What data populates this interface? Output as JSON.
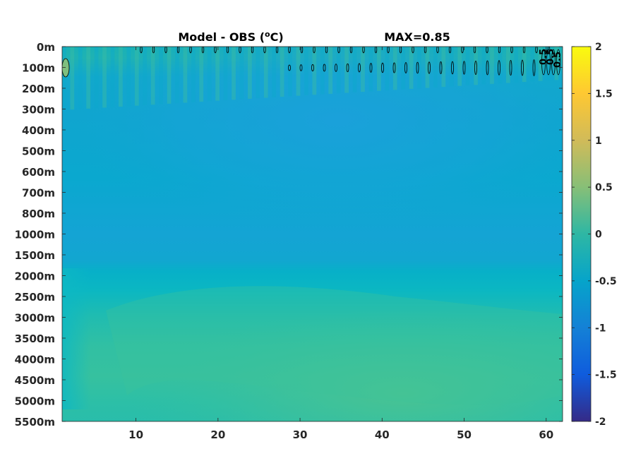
{
  "chart_data": {
    "type": "heatmap",
    "title": "Model - OBS (",
    "title_superscript": "o",
    "title_unit": "C)",
    "annotation": "MAX=0.85",
    "xlabel": "",
    "ylabel": "",
    "x_ticks": [
      10,
      20,
      30,
      40,
      50,
      60
    ],
    "x_tick_labels": [
      "10",
      "20",
      "30",
      "40",
      "50",
      "60"
    ],
    "xlim": [
      1,
      62
    ],
    "y_tick_labels": [
      "0m",
      "100m",
      "200m",
      "300m",
      "400m",
      "500m",
      "600m",
      "700m",
      "800m",
      "1000m",
      "1500m",
      "2000m",
      "2500m",
      "3000m",
      "3500m",
      "4000m",
      "4500m",
      "5000m",
      "5500m"
    ],
    "colorbar": {
      "colormap": "parula",
      "min": -2,
      "max": 2,
      "ticks": [
        2,
        1.5,
        1,
        0.5,
        0,
        -0.5,
        -1,
        -1.5,
        -2
      ],
      "tick_labels": [
        "2",
        "1.5",
        "1",
        "0.5",
        "0",
        "-0.5",
        "-1",
        "-1.5",
        "-2"
      ]
    },
    "field_description_values": {
      "surface_band_value": 0.05,
      "upper_ocean_100_800m_value": -0.3,
      "thermocline_1000_1500m_value": -0.1,
      "deep_2000_5500m_value": 0.25,
      "deep_max_core_3500_4000m_value": 0.35,
      "contour_level": 0.5,
      "max_value": 0.85
    },
    "contour_labels": [
      "0.5",
      "0.5",
      "0.5"
    ],
    "grid": false,
    "legend": "colorbar-right"
  }
}
